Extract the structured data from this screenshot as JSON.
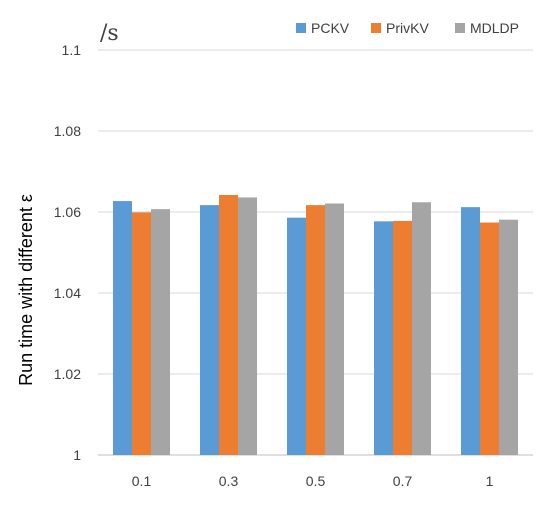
{
  "chart_data": {
    "type": "bar",
    "title": "",
    "unit_label": "/s",
    "xlabel": "",
    "ylabel": "Run time with different ε",
    "categories": [
      "0.1",
      "0.3",
      "0.5",
      "0.7",
      "1"
    ],
    "series": [
      {
        "name": "PCKV",
        "color": "#5B9BD5",
        "values": [
          1.0627,
          1.0617,
          1.0586,
          1.0577,
          1.0612
        ]
      },
      {
        "name": "PrivKV",
        "color": "#ED7D31",
        "values": [
          1.0599,
          1.0642,
          1.0617,
          1.0578,
          1.0574
        ]
      },
      {
        "name": "MDLDP",
        "color": "#A5A5A5",
        "values": [
          1.0607,
          1.0636,
          1.0621,
          1.0624,
          1.0581
        ]
      }
    ],
    "ylim": [
      1,
      1.1
    ],
    "yticks": [
      "1",
      "1.02",
      "1.04",
      "1.06",
      "1.08",
      "1.1"
    ],
    "grid": true,
    "legend_position": "top-right"
  }
}
